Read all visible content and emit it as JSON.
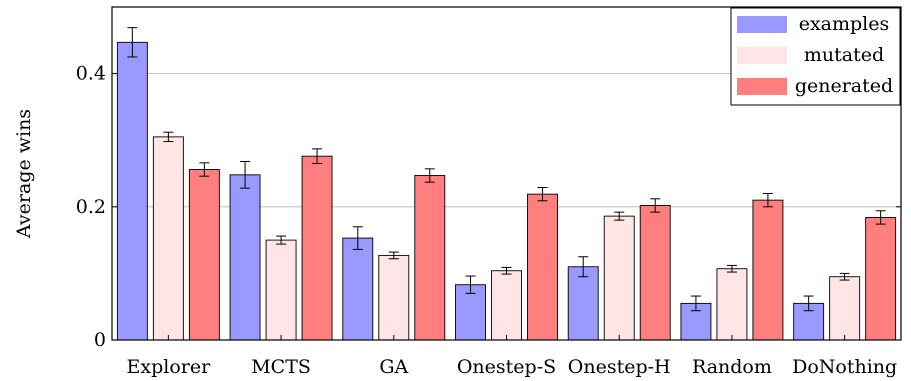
{
  "chart_data": {
    "type": "bar",
    "title": "",
    "xlabel": "",
    "ylabel": "Average wins",
    "ylim": [
      0,
      0.5
    ],
    "yticks": [
      0,
      0.2,
      0.4
    ],
    "ytick_labels": [
      "0",
      "0.2",
      "0.4"
    ],
    "grid": "horizontal",
    "legend_position": "top-right",
    "categories": [
      "Explorer",
      "MCTS",
      "GA",
      "Onestep-S",
      "Onestep-H",
      "Random",
      "DoNothing"
    ],
    "series": [
      {
        "name": "examples",
        "color": "#9999ff",
        "values": [
          0.447,
          0.248,
          0.153,
          0.083,
          0.11,
          0.055,
          0.055
        ],
        "errors": [
          0.022,
          0.02,
          0.017,
          0.013,
          0.015,
          0.011,
          0.011
        ]
      },
      {
        "name": "mutated",
        "color": "#ffe5e5",
        "values": [
          0.305,
          0.15,
          0.127,
          0.104,
          0.186,
          0.107,
          0.095
        ],
        "errors": [
          0.007,
          0.006,
          0.005,
          0.005,
          0.006,
          0.005,
          0.005
        ]
      },
      {
        "name": "generated",
        "color": "#ff7f7f",
        "values": [
          0.256,
          0.276,
          0.247,
          0.219,
          0.202,
          0.21,
          0.184
        ],
        "errors": [
          0.01,
          0.011,
          0.01,
          0.01,
          0.01,
          0.01,
          0.01
        ]
      }
    ]
  }
}
